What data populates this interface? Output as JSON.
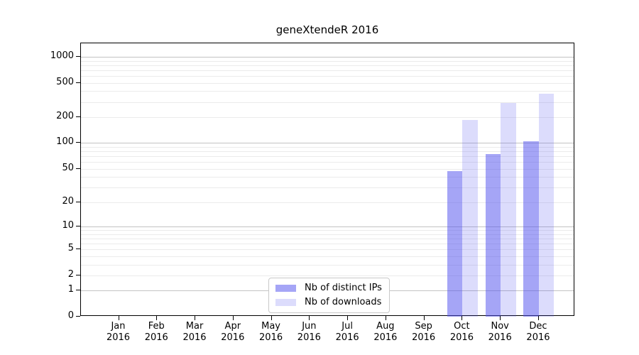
{
  "chart_data": {
    "type": "bar",
    "title": "geneXtendeR 2016",
    "categories": [
      "Jan",
      "Feb",
      "Mar",
      "Apr",
      "May",
      "Jun",
      "Jul",
      "Aug",
      "Sep",
      "Oct",
      "Nov",
      "Dec"
    ],
    "x_year_line": "2016",
    "series": [
      {
        "name": "Nb of distinct IPs",
        "color": "#5252ee85",
        "values": [
          0,
          0,
          0,
          0,
          0,
          0,
          0,
          0,
          0,
          47,
          74,
          105
        ]
      },
      {
        "name": "Nb of downloads",
        "color": "#5252ee33",
        "values": [
          0,
          0,
          0,
          0,
          0,
          0,
          0,
          0,
          0,
          185,
          290,
          375
        ]
      }
    ],
    "yscale": "log1p",
    "yticks": [
      0,
      1,
      2,
      5,
      10,
      20,
      50,
      100,
      200,
      500,
      1000
    ],
    "ylim": [
      0,
      1430
    ],
    "xlabel": "",
    "ylabel": "",
    "grid": {
      "visible": true,
      "major_lines": [
        1,
        10,
        100,
        1000
      ],
      "minor_lines": [
        2,
        3,
        4,
        5,
        6,
        7,
        8,
        9,
        20,
        30,
        40,
        50,
        60,
        70,
        80,
        90,
        200,
        300,
        400,
        500,
        600,
        700,
        800,
        900
      ],
      "major_color": "#c3c3c3",
      "minor_color": "#ebebeb"
    },
    "legend": {
      "position": "lower center"
    },
    "axis_color": "#000000",
    "background_color": "#ffffff"
  }
}
